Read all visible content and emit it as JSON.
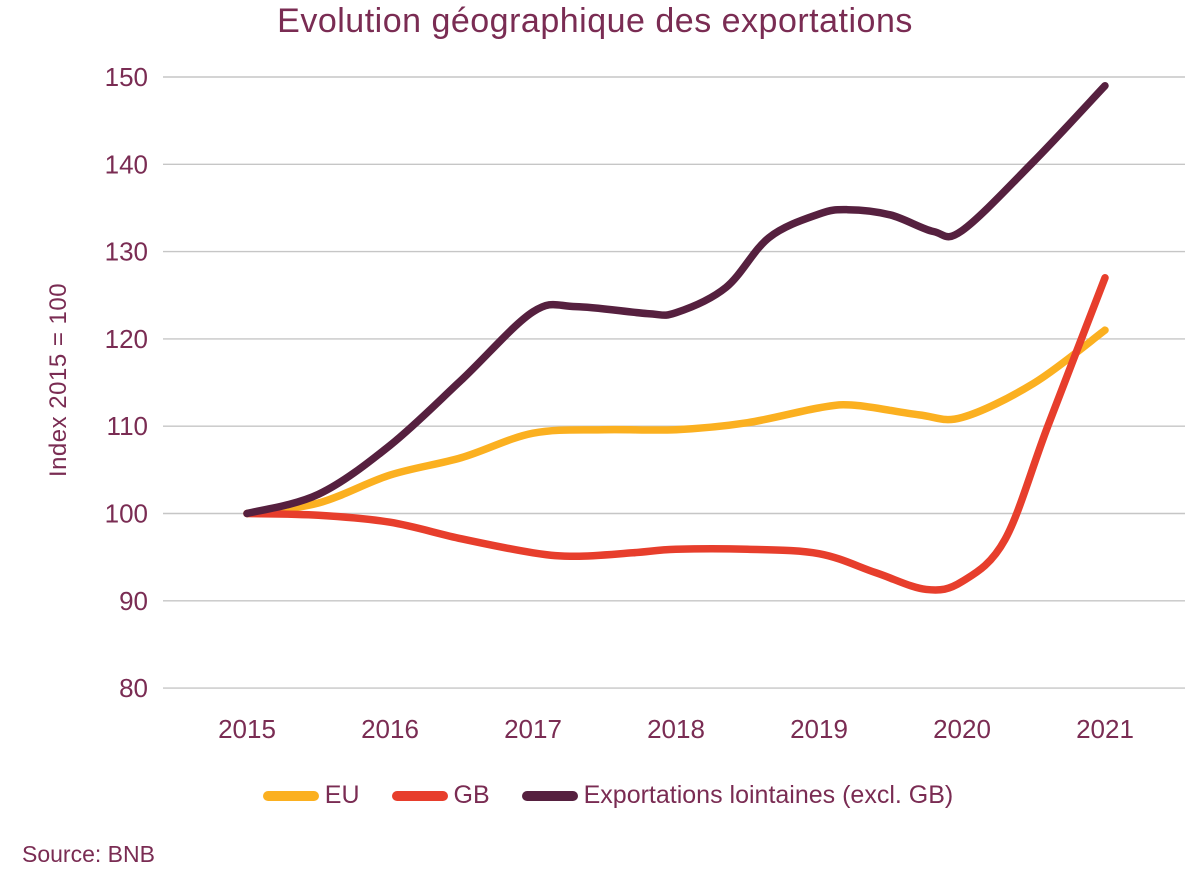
{
  "page": {
    "background": "#ffffff",
    "text_color": "#7A2C53"
  },
  "chart_data": {
    "type": "line",
    "title": "Evolution géographique des exportations",
    "ylabel": "Index 2015 = 100",
    "xlabel": "",
    "source": "Source: BNB",
    "grid": "horizontal",
    "legend_position": "bottom",
    "categories": [
      2015,
      2016,
      2017,
      2018,
      2019,
      2020,
      2021
    ],
    "y_ticks": [
      80,
      90,
      100,
      110,
      120,
      130,
      140,
      150
    ],
    "ylim": [
      80,
      150
    ],
    "gridline_color": "#c6c6c6",
    "series": [
      {
        "name": "EU",
        "color": "#FBB020",
        "values": [
          100,
          104.4,
          109.2,
          109.6,
          112.1,
          111.0,
          121.0
        ],
        "shape_points": [
          [
            2015,
            100
          ],
          [
            2015.5,
            101.2
          ],
          [
            2016,
            104.4
          ],
          [
            2016.5,
            106.4
          ],
          [
            2017,
            109.2
          ],
          [
            2017.5,
            109.6
          ],
          [
            2018,
            109.6
          ],
          [
            2018.5,
            110.4
          ],
          [
            2019,
            112.1
          ],
          [
            2019.25,
            112.4
          ],
          [
            2019.7,
            111.3
          ],
          [
            2020,
            111.0
          ],
          [
            2020.5,
            114.9
          ],
          [
            2021,
            121.0
          ]
        ]
      },
      {
        "name": "GB",
        "color": "#E73E2C",
        "values": [
          100,
          99.0,
          95.5,
          95.9,
          95.4,
          92.2,
          127.0
        ],
        "shape_points": [
          [
            2015,
            100
          ],
          [
            2015.5,
            99.8
          ],
          [
            2016,
            99.0
          ],
          [
            2016.5,
            97.1
          ],
          [
            2017,
            95.5
          ],
          [
            2017.3,
            95.1
          ],
          [
            2017.7,
            95.5
          ],
          [
            2018,
            95.9
          ],
          [
            2018.5,
            95.9
          ],
          [
            2019,
            95.4
          ],
          [
            2019.4,
            93.2
          ],
          [
            2019.75,
            91.3
          ],
          [
            2020,
            92.2
          ],
          [
            2020.3,
            97.0
          ],
          [
            2020.6,
            110.0
          ],
          [
            2021,
            127.0
          ]
        ]
      },
      {
        "name": "Exportations lointaines (excl. GB)",
        "color": "#56203F",
        "values": [
          100,
          107.8,
          123.1,
          123.0,
          134.3,
          132.4,
          149.0
        ],
        "shape_points": [
          [
            2015,
            100
          ],
          [
            2015.5,
            102.2
          ],
          [
            2016,
            107.8
          ],
          [
            2016.5,
            115.3
          ],
          [
            2017,
            123.1
          ],
          [
            2017.3,
            123.7
          ],
          [
            2017.8,
            122.9
          ],
          [
            2018,
            123.0
          ],
          [
            2018.35,
            125.9
          ],
          [
            2018.65,
            131.6
          ],
          [
            2019,
            134.3
          ],
          [
            2019.2,
            134.8
          ],
          [
            2019.5,
            134.2
          ],
          [
            2019.8,
            132.3
          ],
          [
            2020,
            132.4
          ],
          [
            2020.5,
            140.3
          ],
          [
            2021,
            149.0
          ]
        ]
      }
    ]
  }
}
